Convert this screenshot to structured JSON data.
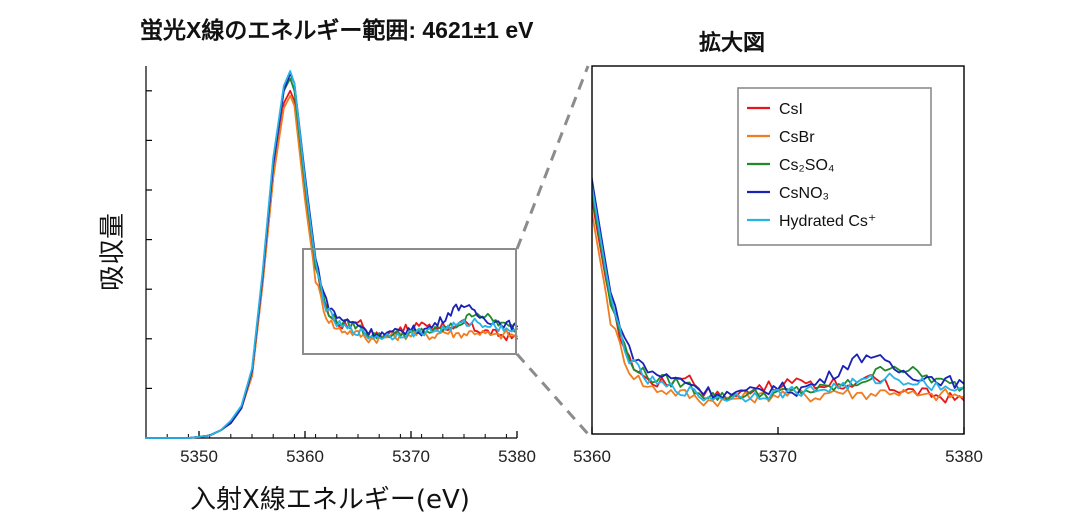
{
  "header": {
    "main_title": "蛍光X線のエネルギー範囲: 4621±1 eV",
    "zoom_title": "拡大図"
  },
  "chart_data": {
    "type": "line",
    "title": "蛍光X線のエネルギー範囲: 4621±1 eV",
    "xlabel": "入射X線エネルギー(eV)",
    "ylabel": "吸収量",
    "xlim": [
      5345,
      5380
    ],
    "ylim": [
      0,
      1.5
    ],
    "xticks": [
      5350,
      5360,
      5370,
      5380
    ],
    "xtick_labels": [
      "5350",
      "5360",
      "5370",
      "5380"
    ],
    "yticks": [
      0.2,
      0.4,
      0.6,
      0.8,
      1.0,
      1.2,
      1.4
    ],
    "grid": false,
    "legend_position": "top-right of zoom panel",
    "inset": {
      "title": "拡大図",
      "xlim": [
        5360,
        5380
      ],
      "ylim": [
        0.3,
        1.4
      ],
      "xtick_labels": [
        "5360",
        "5370",
        "5380"
      ]
    },
    "series": [
      {
        "name": "CsI",
        "color": "#e8161b",
        "x": [
          5345,
          5349,
          5351,
          5352,
          5353,
          5354,
          5355,
          5356,
          5357,
          5358,
          5358.6,
          5359,
          5360,
          5361,
          5362,
          5363,
          5364,
          5365,
          5366,
          5367,
          5368,
          5369,
          5370,
          5371,
          5372,
          5373,
          5374,
          5375,
          5376,
          5377,
          5378,
          5379,
          5380
        ],
        "y": [
          0.0,
          0.0,
          0.01,
          0.03,
          0.06,
          0.12,
          0.25,
          0.62,
          1.05,
          1.35,
          1.4,
          1.36,
          1.0,
          0.68,
          0.52,
          0.46,
          0.45,
          0.48,
          0.43,
          0.41,
          0.42,
          0.45,
          0.43,
          0.47,
          0.44,
          0.46,
          0.43,
          0.47,
          0.44,
          0.43,
          0.42,
          0.41,
          0.4
        ]
      },
      {
        "name": "CsBr",
        "color": "#f07d1e",
        "x": [
          5345,
          5349,
          5351,
          5352,
          5353,
          5354,
          5355,
          5356,
          5357,
          5358,
          5358.6,
          5359,
          5360,
          5361,
          5362,
          5363,
          5364,
          5365,
          5366,
          5367,
          5368,
          5369,
          5370,
          5371,
          5372,
          5373,
          5374,
          5375,
          5376,
          5377,
          5378,
          5379,
          5380
        ],
        "y": [
          0.0,
          0.0,
          0.01,
          0.03,
          0.06,
          0.12,
          0.25,
          0.62,
          1.05,
          1.33,
          1.38,
          1.34,
          0.96,
          0.64,
          0.49,
          0.44,
          0.43,
          0.42,
          0.4,
          0.4,
          0.41,
          0.41,
          0.42,
          0.42,
          0.41,
          0.43,
          0.42,
          0.42,
          0.43,
          0.42,
          0.41,
          0.42,
          0.41
        ]
      },
      {
        "name": "Cs₂SO₄",
        "color": "#1e8a2b",
        "x": [
          5345,
          5349,
          5351,
          5352,
          5353,
          5354,
          5355,
          5356,
          5357,
          5358,
          5358.6,
          5359,
          5360,
          5361,
          5362,
          5363,
          5364,
          5365,
          5366,
          5367,
          5368,
          5369,
          5370,
          5371,
          5372,
          5373,
          5374,
          5375,
          5376,
          5377,
          5378,
          5379,
          5380
        ],
        "y": [
          0.0,
          0.0,
          0.01,
          0.03,
          0.06,
          0.12,
          0.27,
          0.66,
          1.12,
          1.4,
          1.45,
          1.4,
          1.02,
          0.69,
          0.52,
          0.47,
          0.46,
          0.45,
          0.42,
          0.41,
          0.42,
          0.42,
          0.42,
          0.43,
          0.43,
          0.44,
          0.45,
          0.47,
          0.51,
          0.49,
          0.47,
          0.45,
          0.44
        ]
      },
      {
        "name": "CsNO₃",
        "color": "#1a22b5",
        "x": [
          5345,
          5349,
          5351,
          5352,
          5353,
          5354,
          5355,
          5356,
          5357,
          5358,
          5358.6,
          5359,
          5360,
          5361,
          5362,
          5363,
          5364,
          5365,
          5366,
          5367,
          5368,
          5369,
          5370,
          5371,
          5372,
          5373,
          5374,
          5375,
          5376,
          5377,
          5378,
          5379,
          5380
        ],
        "y": [
          0.0,
          0.0,
          0.01,
          0.03,
          0.06,
          0.12,
          0.27,
          0.65,
          1.1,
          1.4,
          1.47,
          1.43,
          1.06,
          0.72,
          0.55,
          0.49,
          0.47,
          0.46,
          0.43,
          0.42,
          0.42,
          0.43,
          0.44,
          0.43,
          0.45,
          0.48,
          0.52,
          0.54,
          0.5,
          0.48,
          0.47,
          0.46,
          0.45
        ]
      },
      {
        "name": "Hydrated Cs⁺",
        "color": "#27b3e6",
        "x": [
          5345,
          5349,
          5351,
          5352,
          5353,
          5354,
          5355,
          5356,
          5357,
          5358,
          5358.6,
          5359,
          5360,
          5361,
          5362,
          5363,
          5364,
          5365,
          5366,
          5367,
          5368,
          5369,
          5370,
          5371,
          5372,
          5373,
          5374,
          5375,
          5376,
          5377,
          5378,
          5379,
          5380
        ],
        "y": [
          0.0,
          0.0,
          0.01,
          0.03,
          0.07,
          0.13,
          0.28,
          0.67,
          1.13,
          1.42,
          1.48,
          1.43,
          1.04,
          0.7,
          0.52,
          0.46,
          0.44,
          0.43,
          0.41,
          0.41,
          0.41,
          0.42,
          0.42,
          0.43,
          0.43,
          0.44,
          0.45,
          0.46,
          0.47,
          0.46,
          0.45,
          0.44,
          0.44
        ]
      }
    ]
  }
}
